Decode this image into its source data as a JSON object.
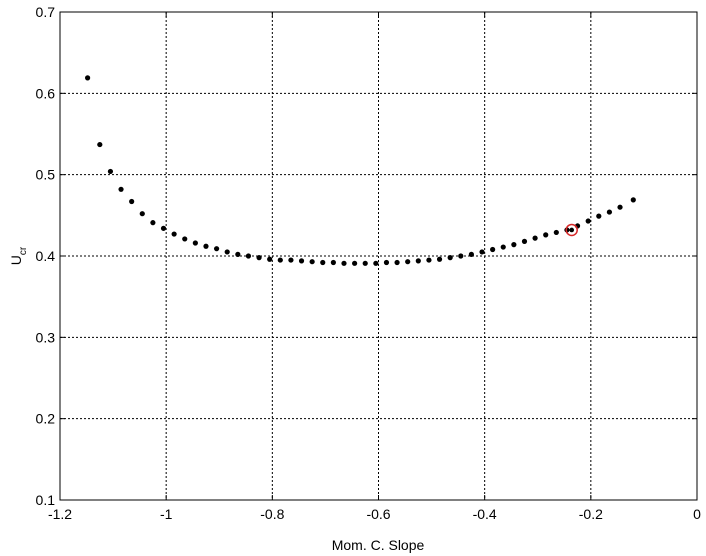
{
  "chart_data": {
    "type": "scatter",
    "title": "",
    "xlabel": "Mom. C. Slope",
    "ylabel_main": "U",
    "ylabel_sub": "cr",
    "xlim": [
      -1.2,
      0
    ],
    "ylim": [
      0.1,
      0.7
    ],
    "xticks": [
      -1.2,
      -1,
      -0.8,
      -0.6,
      -0.4,
      -0.2,
      0
    ],
    "xtick_labels": [
      "-1.2",
      "-1",
      "-0.8",
      "-0.6",
      "-0.4",
      "-0.2",
      "0"
    ],
    "yticks": [
      0.1,
      0.2,
      0.3,
      0.4,
      0.5,
      0.6,
      0.7
    ],
    "ytick_labels": [
      "0.1",
      "0.2",
      "0.3",
      "0.4",
      "0.5",
      "0.6",
      "0.7"
    ],
    "grid": true,
    "marker_color": "#000000",
    "highlight_color": "#d62728",
    "series": [
      {
        "x": [
          -1.148,
          -1.125,
          -1.105,
          -1.085,
          -1.065,
          -1.045,
          -1.025,
          -1.005,
          -0.985,
          -0.965,
          -0.945,
          -0.925,
          -0.905,
          -0.885,
          -0.865,
          -0.845,
          -0.825,
          -0.805,
          -0.785,
          -0.765,
          -0.745,
          -0.725,
          -0.705,
          -0.685,
          -0.665,
          -0.645,
          -0.625,
          -0.605,
          -0.585,
          -0.565,
          -0.545,
          -0.525,
          -0.505,
          -0.485,
          -0.465,
          -0.445,
          -0.425,
          -0.405,
          -0.385,
          -0.365,
          -0.345,
          -0.325,
          -0.305,
          -0.285,
          -0.265,
          -0.245,
          -0.225,
          -0.205,
          -0.185,
          -0.165,
          -0.145,
          -0.12
        ],
        "y": [
          0.619,
          0.537,
          0.504,
          0.482,
          0.467,
          0.452,
          0.441,
          0.434,
          0.427,
          0.421,
          0.416,
          0.412,
          0.409,
          0.405,
          0.402,
          0.4,
          0.398,
          0.396,
          0.395,
          0.395,
          0.394,
          0.393,
          0.392,
          0.392,
          0.391,
          0.391,
          0.391,
          0.391,
          0.392,
          0.392,
          0.393,
          0.394,
          0.395,
          0.396,
          0.398,
          0.4,
          0.402,
          0.405,
          0.408,
          0.411,
          0.414,
          0.418,
          0.422,
          0.426,
          0.429,
          0.432,
          0.437,
          0.443,
          0.449,
          0.454,
          0.46,
          0.469
        ]
      }
    ],
    "highlight_point": {
      "x": -0.236,
      "y": 0.432
    }
  }
}
